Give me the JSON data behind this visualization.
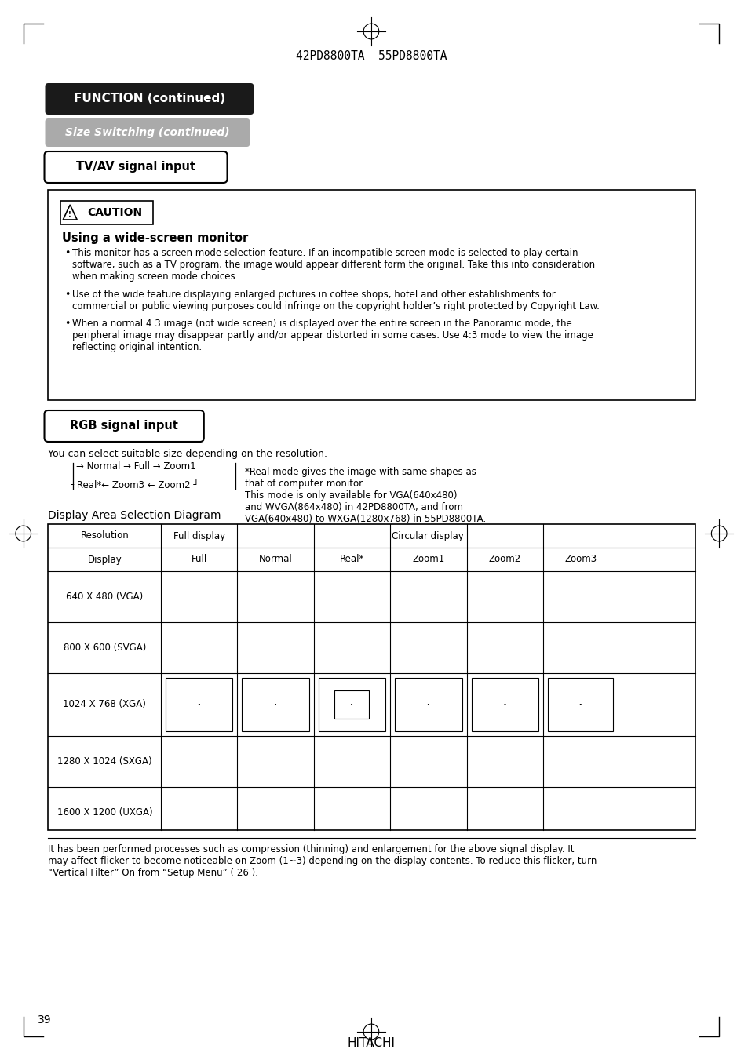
{
  "page_title": "42PD8800TA  55PD8800TA",
  "section1_title": "FUNCTION (continued)",
  "section2_title": "Size Switching (continued)",
  "section3_title": "TV/AV signal input",
  "caution_title": "Using a wide-screen monitor",
  "caution_bullets": [
    "This monitor has a screen mode selection feature. If an incompatible screen mode is selected to play certain\nsoftware, such as a TV program, the image would appear different form the original. Take this into consideration\nwhen making screen mode choices.",
    "Use of the wide feature displaying enlarged pictures in coffee shops, hotel and other establishments for\ncommercial or public viewing purposes could infringe on the copyright holder’s right protected by Copyright Law.",
    "When a normal 4:3 image (not wide screen) is displayed over the entire screen in the Panoramic mode, the\nperipheral image may disappear partly and/or appear distorted in some cases. Use 4:3 mode to view the image\nreflecting original intention."
  ],
  "section4_title": "RGB signal input",
  "rgb_desc": "You can select suitable size depending on the resolution.",
  "flow_line1": "→ Normal → Full → Zoom1",
  "flow_line2": "└ Real* ← Zoom3 ← Zoom2 ┘",
  "real_note": "*Real mode gives the image with same shapes as\nthat of computer monitor.\nThis mode is only available for VGA(640x480)\nand WVGA(864x480) in 42PD8800TA, and from\nVGA(640x480) to WXGA(1280x768) in 55PD8800TA.",
  "diagram_title": "Display Area Selection Diagram",
  "table_col_headers": [
    "Resolution",
    "Full display",
    "Circular display"
  ],
  "table_sub_headers": [
    "Display",
    "Full",
    "Normal",
    "Real*",
    "Zoom1",
    "Zoom2",
    "Zoom3"
  ],
  "table_rows": [
    "640 X 480 (VGA)",
    "800 X 600 (SVGA)",
    "1024 X 768 (XGA)",
    "1280 X 1024 (SXGA)",
    "1600 X 1200 (UXGA)"
  ],
  "footer_text": "It has been performed processes such as compression (thinning) and enlargement for the above signal display. It\nmay affect flicker to become noticeable on Zoom (1~3) depending on the display contents. To reduce this flicker, turn\n“Vertical Filter” On from “Setup Menu” ( 26 ).",
  "page_number": "39",
  "hitachi": "HITACHI",
  "bg_color": "#ffffff",
  "text_color": "#000000",
  "section1_bg": "#1a1a1a",
  "section2_bg": "#888888",
  "section3_border": "#000000"
}
